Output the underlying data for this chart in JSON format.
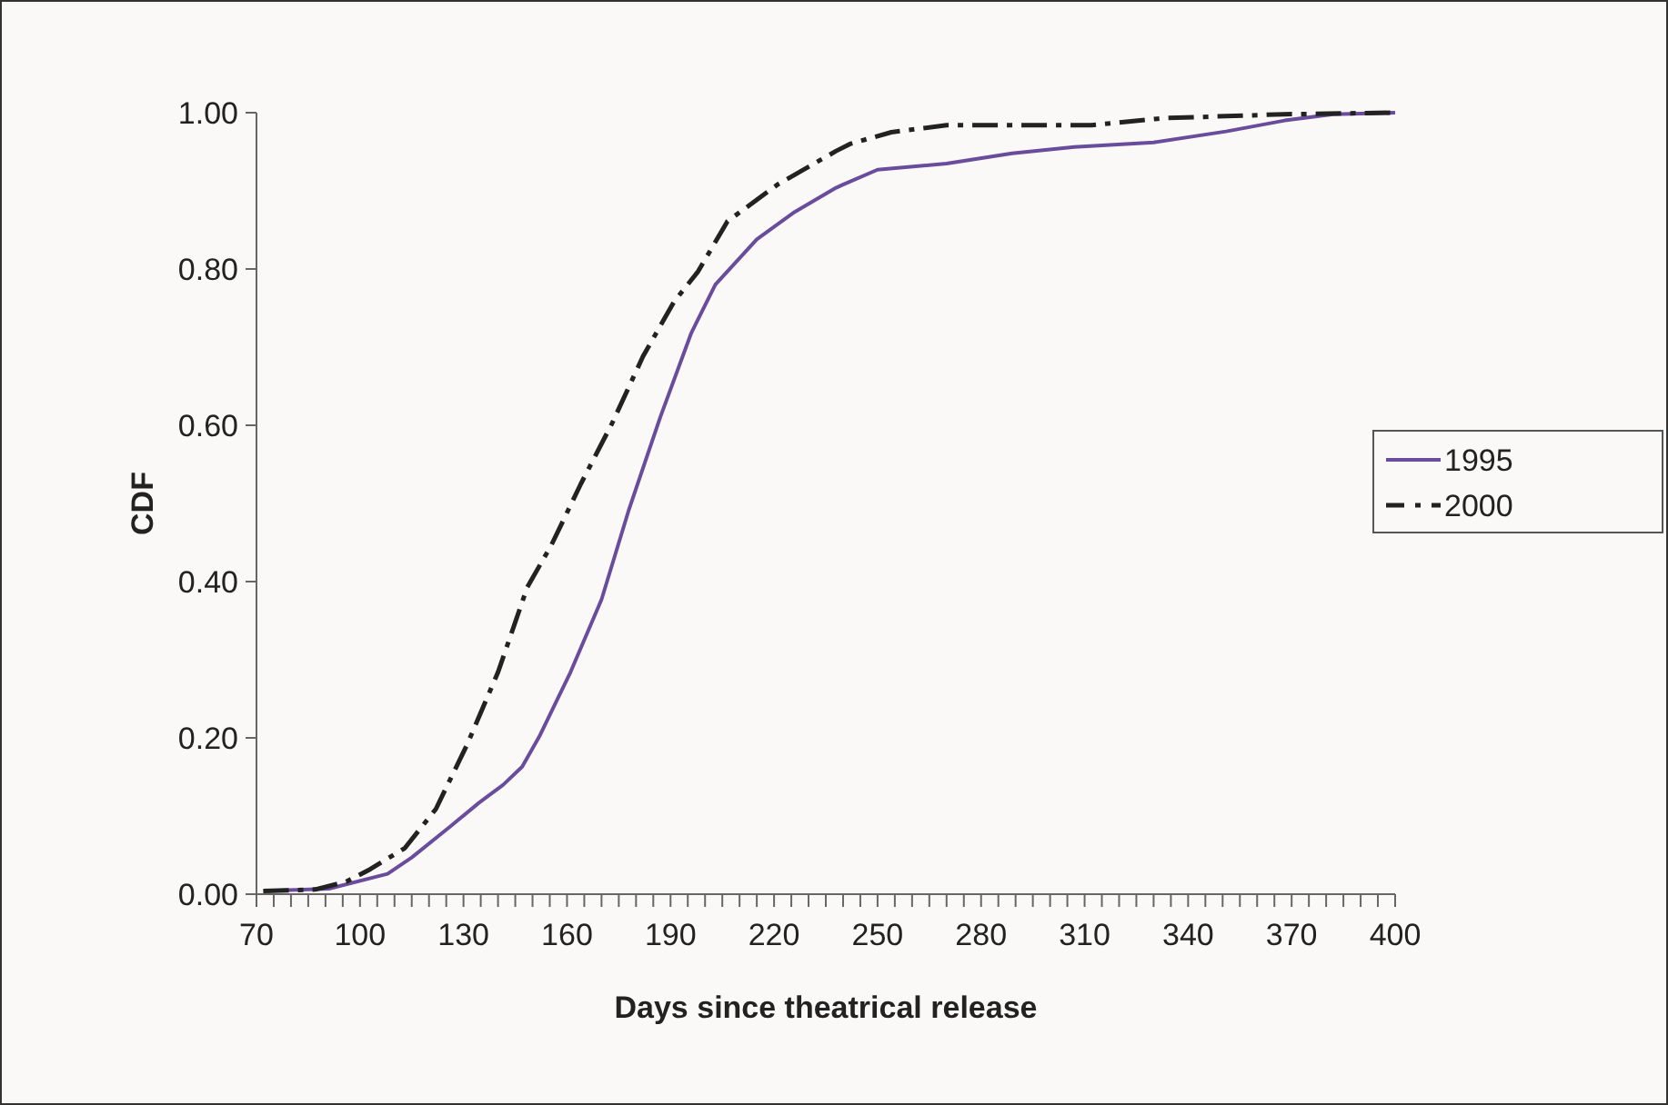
{
  "chart_data": {
    "type": "line",
    "xlabel": "Days since theatrical release",
    "ylabel": "CDF",
    "xlim": [
      70,
      400
    ],
    "ylim": [
      0,
      1
    ],
    "xticks": [
      70,
      {
        "value": 75,
        "label": null
      },
      {
        "value": 80,
        "label": null
      },
      {
        "value": 85,
        "label": null
      },
      {
        "value": 90,
        "label": null
      },
      {
        "value": 95,
        "label": null
      },
      100,
      {
        "value": 105,
        "label": null
      },
      {
        "value": 110,
        "label": null
      },
      {
        "value": 115,
        "label": null
      },
      {
        "value": 120,
        "label": null
      },
      {
        "value": 125,
        "label": null
      },
      130,
      {
        "value": 135,
        "label": null
      },
      {
        "value": 140,
        "label": null
      },
      {
        "value": 145,
        "label": null
      },
      {
        "value": 150,
        "label": null
      },
      {
        "value": 155,
        "label": null
      },
      160,
      {
        "value": 165,
        "label": null
      },
      {
        "value": 170,
        "label": null
      },
      {
        "value": 175,
        "label": null
      },
      {
        "value": 180,
        "label": null
      },
      {
        "value": 185,
        "label": null
      },
      190,
      {
        "value": 195,
        "label": null
      },
      {
        "value": 200,
        "label": null
      },
      {
        "value": 205,
        "label": null
      },
      {
        "value": 210,
        "label": null
      },
      {
        "value": 215,
        "label": null
      },
      220,
      {
        "value": 225,
        "label": null
      },
      {
        "value": 230,
        "label": null
      },
      {
        "value": 235,
        "label": null
      },
      {
        "value": 240,
        "label": null
      },
      {
        "value": 245,
        "label": null
      },
      250,
      {
        "value": 255,
        "label": null
      },
      {
        "value": 260,
        "label": null
      },
      {
        "value": 265,
        "label": null
      },
      {
        "value": 270,
        "label": null
      },
      {
        "value": 275,
        "label": null
      },
      280,
      {
        "value": 285,
        "label": null
      },
      {
        "value": 290,
        "label": null
      },
      {
        "value": 295,
        "label": null
      },
      {
        "value": 300,
        "label": null
      },
      {
        "value": 305,
        "label": null
      },
      310,
      {
        "value": 315,
        "label": null
      },
      {
        "value": 320,
        "label": null
      },
      {
        "value": 325,
        "label": null
      },
      {
        "value": 330,
        "label": null
      },
      {
        "value": 335,
        "label": null
      },
      340,
      {
        "value": 345,
        "label": null
      },
      {
        "value": 350,
        "label": null
      },
      {
        "value": 355,
        "label": null
      },
      {
        "value": 360,
        "label": null
      },
      {
        "value": 365,
        "label": null
      },
      370,
      {
        "value": 375,
        "label": null
      },
      {
        "value": 380,
        "label": null
      },
      {
        "value": 385,
        "label": null
      },
      {
        "value": 390,
        "label": null
      },
      {
        "value": 395,
        "label": null
      },
      400
    ],
    "yticks": [
      {
        "value": 0,
        "label": "0.00"
      },
      {
        "value": 0.2,
        "label": "0.20"
      },
      {
        "value": 0.4,
        "label": "0.40"
      },
      {
        "value": 0.6,
        "label": "0.60"
      },
      {
        "value": 0.8,
        "label": "0.80"
      },
      {
        "value": 1,
        "label": "1.00"
      }
    ],
    "grid": false,
    "legend": "right",
    "marker": "none",
    "series": [
      {
        "name": "1995",
        "color": "#6a4c9c",
        "line_style": "solid",
        "x": [
          72,
          91,
          108,
          115,
          126,
          134.5,
          141.5,
          147,
          152,
          161,
          170,
          178,
          187,
          196,
          203,
          215,
          226,
          238,
          240,
          250,
          270,
          289,
          307,
          330,
          351,
          368,
          382,
          400
        ],
        "values": [
          0.004,
          0.007,
          0.026,
          0.047,
          0.086,
          0.117,
          0.14,
          0.163,
          0.202,
          0.284,
          0.377,
          0.493,
          0.61,
          0.718,
          0.78,
          0.838,
          0.873,
          0.904,
          0.908,
          0.927,
          0.935,
          0.948,
          0.956,
          0.962,
          0.976,
          0.99,
          0.998,
          1.0
        ]
      },
      {
        "name": "2000",
        "color": "#222222",
        "line_style": "dashed",
        "x": [
          72,
          87,
          96,
          103,
          113,
          122,
          131,
          140,
          148.5,
          155.5,
          164,
          173,
          182,
          191,
          198,
          206.5,
          221,
          238,
          242,
          254,
          270,
          312,
          333,
          368,
          400
        ],
        "values": [
          0.004,
          0.006,
          0.016,
          0.032,
          0.059,
          0.109,
          0.191,
          0.284,
          0.393,
          0.447,
          0.525,
          0.602,
          0.688,
          0.758,
          0.797,
          0.861,
          0.908,
          0.951,
          0.96,
          0.975,
          0.984,
          0.984,
          0.993,
          0.998,
          1.0
        ]
      }
    ]
  }
}
